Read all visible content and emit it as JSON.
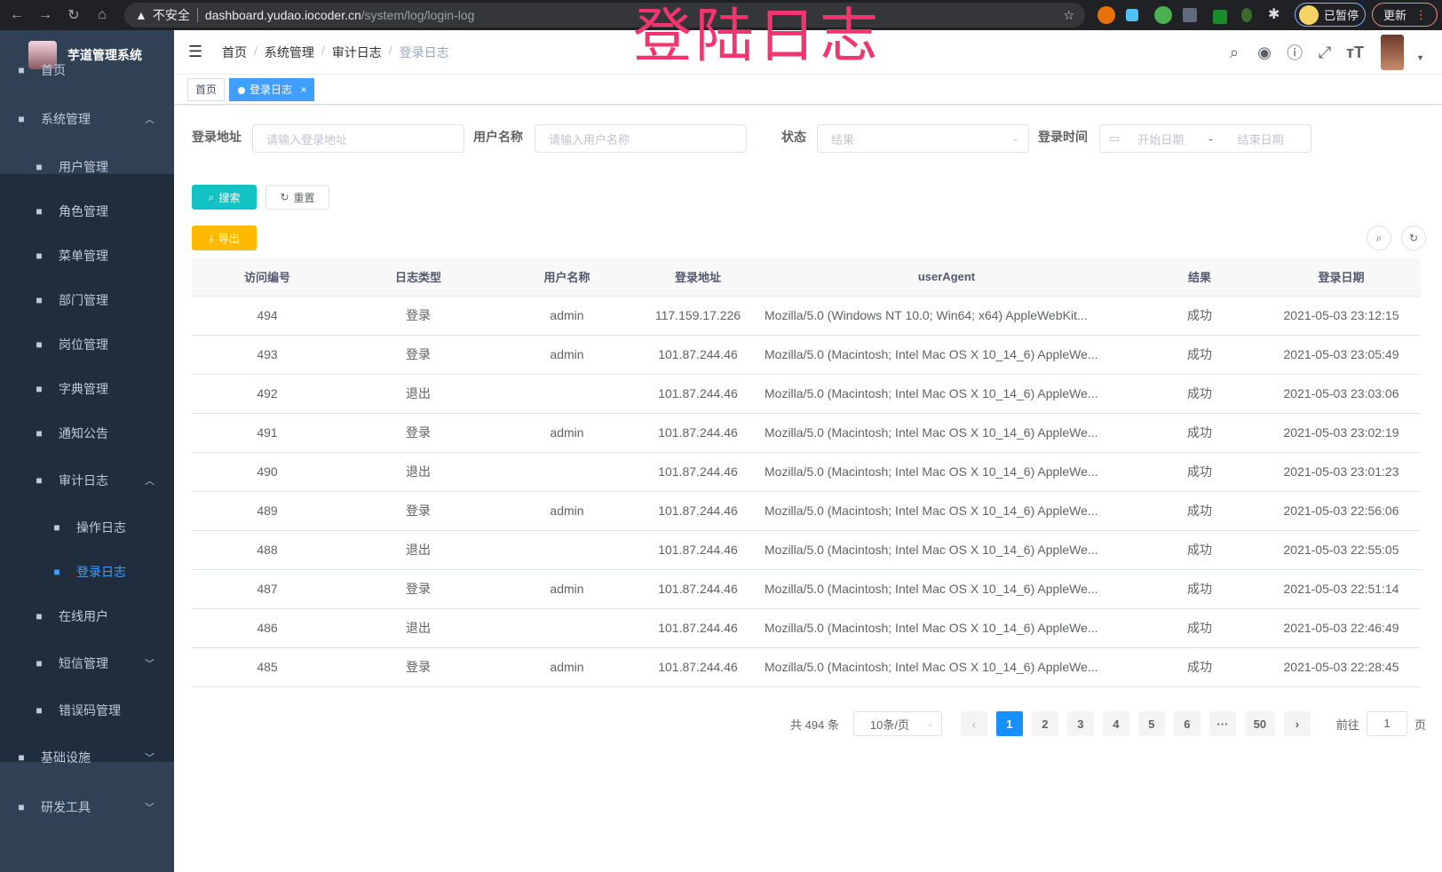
{
  "browser": {
    "security": "不安全",
    "url_host": "dashboard.yudao.iocoder.cn",
    "url_path": "/system/log/login-log",
    "profile": "已暂停",
    "update": "更新"
  },
  "watermark": "登陆日志",
  "sidebar": {
    "title": "芋道管理系统",
    "items": [
      {
        "label": "首页",
        "icon": "dashboard-icon"
      },
      {
        "label": "系统管理",
        "icon": "gear-icon",
        "expanded": true
      },
      {
        "label": "用户管理",
        "icon": "user-icon"
      },
      {
        "label": "角色管理",
        "icon": "peoples-icon"
      },
      {
        "label": "菜单管理",
        "icon": "tree-table-icon"
      },
      {
        "label": "部门管理",
        "icon": "tree-icon"
      },
      {
        "label": "岗位管理",
        "icon": "post-icon"
      },
      {
        "label": "字典管理",
        "icon": "dict-icon"
      },
      {
        "label": "通知公告",
        "icon": "message-icon"
      },
      {
        "label": "审计日志",
        "icon": "log-icon",
        "expanded": true
      },
      {
        "label": "操作日志",
        "icon": "form-icon"
      },
      {
        "label": "登录日志",
        "icon": "logininfor-icon",
        "active": true
      },
      {
        "label": "在线用户",
        "icon": "online-icon"
      },
      {
        "label": "短信管理",
        "icon": "validCode-icon"
      },
      {
        "label": "错误码管理",
        "icon": "code-icon"
      },
      {
        "label": "基础设施",
        "icon": "monitor-icon"
      },
      {
        "label": "研发工具",
        "icon": "tool-icon"
      }
    ]
  },
  "breadcrumb": [
    "首页",
    "系统管理",
    "审计日志",
    "登录日志"
  ],
  "tags": [
    {
      "label": "首页"
    },
    {
      "label": "登录日志",
      "close": "×"
    }
  ],
  "filters": {
    "address_label": "登录地址",
    "address_placeholder": "请输入登录地址",
    "username_label": "用户名称",
    "username_placeholder": "请输入用户名称",
    "status_label": "状态",
    "status_placeholder": "结果",
    "time_label": "登录时间",
    "start_placeholder": "开始日期",
    "range_sep": "-",
    "end_placeholder": "结束日期"
  },
  "buttons": {
    "search": "搜索",
    "reset": "重置",
    "export": "导出"
  },
  "colors": {
    "primary": "#409eff",
    "search": "#13c2c2",
    "export": "#ffba00",
    "sidebar": "#304156"
  },
  "table": {
    "headers": [
      "访问编号",
      "日志类型",
      "用户名称",
      "登录地址",
      "userAgent",
      "结果",
      "登录日期"
    ],
    "rows": [
      [
        "494",
        "登录",
        "admin",
        "117.159.17.226",
        "Mozilla/5.0 (Windows NT 10.0; Win64; x64) AppleWebKit...",
        "成功",
        "2021-05-03 23:12:15"
      ],
      [
        "493",
        "登录",
        "admin",
        "101.87.244.46",
        "Mozilla/5.0 (Macintosh; Intel Mac OS X 10_14_6) AppleWe...",
        "成功",
        "2021-05-03 23:05:49"
      ],
      [
        "492",
        "退出",
        "",
        "101.87.244.46",
        "Mozilla/5.0 (Macintosh; Intel Mac OS X 10_14_6) AppleWe...",
        "成功",
        "2021-05-03 23:03:06"
      ],
      [
        "491",
        "登录",
        "admin",
        "101.87.244.46",
        "Mozilla/5.0 (Macintosh; Intel Mac OS X 10_14_6) AppleWe...",
        "成功",
        "2021-05-03 23:02:19"
      ],
      [
        "490",
        "退出",
        "",
        "101.87.244.46",
        "Mozilla/5.0 (Macintosh; Intel Mac OS X 10_14_6) AppleWe...",
        "成功",
        "2021-05-03 23:01:23"
      ],
      [
        "489",
        "登录",
        "admin",
        "101.87.244.46",
        "Mozilla/5.0 (Macintosh; Intel Mac OS X 10_14_6) AppleWe...",
        "成功",
        "2021-05-03 22:56:06"
      ],
      [
        "488",
        "退出",
        "",
        "101.87.244.46",
        "Mozilla/5.0 (Macintosh; Intel Mac OS X 10_14_6) AppleWe...",
        "成功",
        "2021-05-03 22:55:05"
      ],
      [
        "487",
        "登录",
        "admin",
        "101.87.244.46",
        "Mozilla/5.0 (Macintosh; Intel Mac OS X 10_14_6) AppleWe...",
        "成功",
        "2021-05-03 22:51:14"
      ],
      [
        "486",
        "退出",
        "",
        "101.87.244.46",
        "Mozilla/5.0 (Macintosh; Intel Mac OS X 10_14_6) AppleWe...",
        "成功",
        "2021-05-03 22:46:49"
      ],
      [
        "485",
        "登录",
        "admin",
        "101.87.244.46",
        "Mozilla/5.0 (Macintosh; Intel Mac OS X 10_14_6) AppleWe...",
        "成功",
        "2021-05-03 22:28:45"
      ]
    ]
  },
  "pagination": {
    "total": "共 494 条",
    "page_size": "10条/页",
    "pages": [
      "1",
      "2",
      "3",
      "4",
      "5",
      "6",
      "···",
      "50"
    ],
    "current": "1",
    "goto_label": "前往",
    "goto_value": "1",
    "goto_suffix": "页"
  }
}
